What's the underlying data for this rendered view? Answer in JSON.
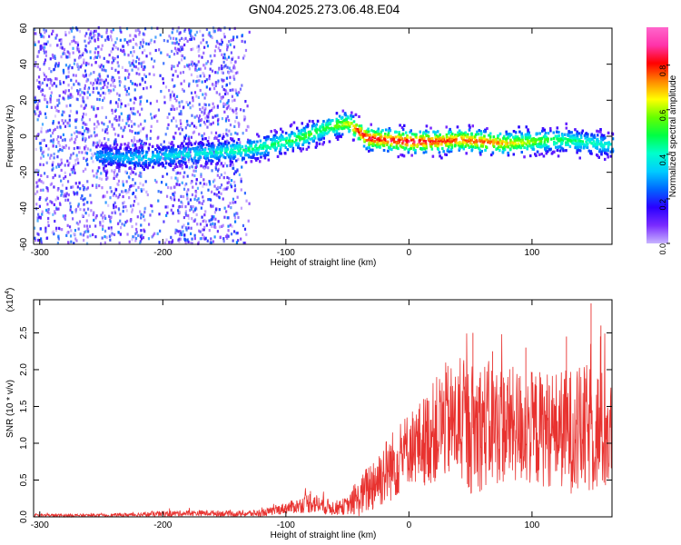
{
  "title": "GN04.2025.273.06.48.E04",
  "chart_data": [
    {
      "type": "heatmap",
      "xlabel": "Height of straight line (km)",
      "ylabel": "Frequency (Hz)",
      "xlim": [
        -305,
        165
      ],
      "ylim": [
        -60,
        60
      ],
      "xticks": [
        -300,
        -200,
        -100,
        0,
        100
      ],
      "yticks": [
        -60,
        -40,
        -20,
        0,
        20,
        40,
        60
      ],
      "colorbar": {
        "label": "Normalized spectral amplitude",
        "range": [
          0,
          0.97
        ],
        "ticks": [
          "0.0",
          "0.2",
          "0.4",
          "0.6",
          "0.8"
        ],
        "ticks_values": [
          0,
          0.2,
          0.4,
          0.6,
          0.8
        ],
        "colormap": [
          "#c8b4ff",
          "#7a2cff",
          "#2a00ff",
          "#0066ff",
          "#00ccff",
          "#00ffcc",
          "#00ff44",
          "#66ff00",
          "#ffff00",
          "#ff8800",
          "#ff0000",
          "#ff33aa",
          "#ff66cc"
        ]
      },
      "ridge": {
        "x": [
          -250,
          -220,
          -200,
          -180,
          -160,
          -140,
          -120,
          -100,
          -85,
          -70,
          -60,
          -50,
          -42,
          -35,
          -20,
          0,
          20,
          40,
          60,
          80,
          100,
          120,
          140,
          160
        ],
        "freq_hz": [
          -11,
          -12,
          -11,
          -10,
          -9,
          -8,
          -6,
          -3,
          0,
          4,
          6,
          7,
          3,
          -1,
          -2,
          -3,
          -3,
          -2,
          -3,
          -4,
          -3,
          -2,
          -3,
          -5
        ],
        "amplitude": [
          0.3,
          0.35,
          0.35,
          0.38,
          0.4,
          0.45,
          0.45,
          0.5,
          0.55,
          0.5,
          0.6,
          0.65,
          0.85,
          0.9,
          0.85,
          0.9,
          0.85,
          0.8,
          0.8,
          0.7,
          0.6,
          0.5,
          0.45,
          0.4
        ]
      }
    },
    {
      "type": "line",
      "xlabel": "Height of straight line (km)",
      "ylabel": "SNR (10 * v/v)",
      "exponent_label": "(x10",
      "exponent_sup": "4",
      "exponent_close": ")",
      "xlim": [
        -305,
        165
      ],
      "ylim": [
        0,
        2.95
      ],
      "xticks": [
        -300,
        -200,
        -100,
        0,
        100
      ],
      "yticks": [
        "0.0",
        "0.5",
        "1.0",
        "1.5",
        "2.0",
        "2.5"
      ],
      "yticks_values": [
        0,
        0.5,
        1.0,
        1.5,
        2.0,
        2.5
      ],
      "series": [
        {
          "color": "#e8322f",
          "envelope": {
            "x": [
              -305,
              -250,
              -220,
              -200,
              -180,
              -160,
              -140,
              -120,
              -110,
              -100,
              -90,
              -80,
              -70,
              -60,
              -50,
              -40,
              -30,
              -20,
              -10,
              0,
              10,
              20,
              30,
              40,
              50,
              60,
              80,
              100,
              120,
              140,
              150,
              165
            ],
            "mean": [
              0.02,
              0.02,
              0.03,
              0.04,
              0.05,
              0.05,
              0.04,
              0.05,
              0.08,
              0.12,
              0.15,
              0.2,
              0.15,
              0.12,
              0.15,
              0.25,
              0.45,
              0.6,
              0.75,
              0.95,
              1.0,
              1.15,
              1.3,
              1.25,
              1.2,
              1.25,
              1.25,
              1.2,
              1.2,
              1.15,
              1.2,
              1.1
            ],
            "spread": [
              0.02,
              0.02,
              0.03,
              0.04,
              0.04,
              0.04,
              0.04,
              0.05,
              0.06,
              0.08,
              0.1,
              0.15,
              0.12,
              0.1,
              0.12,
              0.25,
              0.4,
              0.45,
              0.5,
              0.5,
              0.6,
              0.7,
              0.8,
              0.8,
              0.9,
              0.9,
              0.8,
              0.8,
              0.8,
              0.9,
              0.9,
              0.8
            ]
          },
          "peaks": [
            {
              "x": 52,
              "y": 2.5
            },
            {
              "x": 128,
              "y": 2.45
            },
            {
              "x": 148,
              "y": 2.9
            },
            {
              "x": 156,
              "y": 2.6
            },
            {
              "x": 68,
              "y": 2.25
            },
            {
              "x": 95,
              "y": 2.3
            },
            {
              "x": -80,
              "y": 0.35
            }
          ]
        }
      ]
    }
  ]
}
